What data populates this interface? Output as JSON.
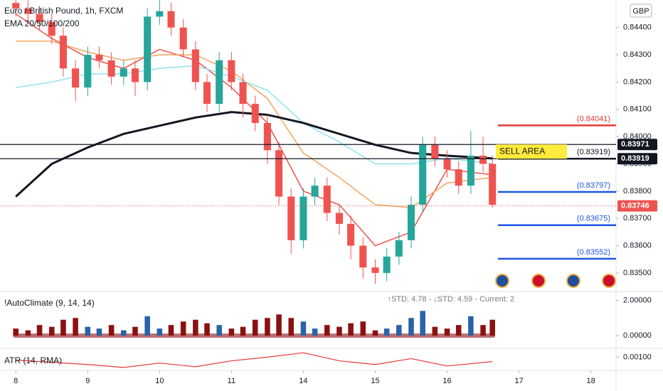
{
  "chart_data": [
    {
      "type": "candlestick",
      "title": "Euro / British Pound, 1h, FXCM",
      "subtitle": "EMA 20/50/100/200",
      "currency": "GBP",
      "up_color": "#26a69a",
      "down_color": "#ef5350",
      "xlim": [
        -0.22,
        8.35
      ],
      "xticks": [
        {
          "value": 0,
          "label": "8"
        },
        {
          "value": 1,
          "label": "9"
        },
        {
          "value": 2,
          "label": "10"
        },
        {
          "value": 3,
          "label": "11"
        },
        {
          "value": 4,
          "label": "14"
        },
        {
          "value": 5,
          "label": "15"
        },
        {
          "value": 6,
          "label": "16"
        },
        {
          "value": 7,
          "label": "17"
        },
        {
          "value": 8,
          "label": "18"
        }
      ],
      "ylim": [
        0.83432,
        0.84501
      ],
      "yticks": [
        {
          "value": 0.844,
          "label": "0.84400"
        },
        {
          "value": 0.843,
          "label": "0.84300"
        },
        {
          "value": 0.842,
          "label": "0.84200"
        },
        {
          "value": 0.841,
          "label": "0.84100"
        },
        {
          "value": 0.84,
          "label": "0.84000"
        },
        {
          "value": 0.839,
          "label": "0.83900"
        },
        {
          "value": 0.838,
          "label": "0.83800"
        },
        {
          "value": 0.837,
          "label": "0.83700"
        },
        {
          "value": 0.836,
          "label": "0.83600"
        },
        {
          "value": 0.835,
          "label": "0.83500"
        }
      ],
      "candles": [
        {
          "x": 0,
          "open": 0.8449,
          "high": 0.8452,
          "low": 0.8444,
          "close": 0.8447
        },
        {
          "x": 0.17,
          "open": 0.8447,
          "high": 0.845,
          "low": 0.8442,
          "close": 0.8445
        },
        {
          "x": 0.33,
          "open": 0.8445,
          "high": 0.8448,
          "low": 0.8439,
          "close": 0.8442
        },
        {
          "x": 0.5,
          "open": 0.8442,
          "high": 0.8445,
          "low": 0.8434,
          "close": 0.8437
        },
        {
          "x": 0.66,
          "open": 0.8437,
          "high": 0.844,
          "low": 0.8422,
          "close": 0.8425
        },
        {
          "x": 0.83,
          "open": 0.8425,
          "high": 0.8428,
          "low": 0.8413,
          "close": 0.8418
        },
        {
          "x": 1,
          "open": 0.8418,
          "high": 0.8433,
          "low": 0.8415,
          "close": 0.843
        },
        {
          "x": 1.16,
          "open": 0.843,
          "high": 0.8433,
          "low": 0.8425,
          "close": 0.8428
        },
        {
          "x": 1.33,
          "open": 0.8428,
          "high": 0.8431,
          "low": 0.8419,
          "close": 0.8422
        },
        {
          "x": 1.5,
          "open": 0.8422,
          "high": 0.8428,
          "low": 0.8419,
          "close": 0.8425
        },
        {
          "x": 1.66,
          "open": 0.8425,
          "high": 0.8428,
          "low": 0.8415,
          "close": 0.842
        },
        {
          "x": 1.83,
          "open": 0.842,
          "high": 0.8447,
          "low": 0.8417,
          "close": 0.8444
        },
        {
          "x": 2,
          "open": 0.8444,
          "high": 0.845,
          "low": 0.8441,
          "close": 0.8446
        },
        {
          "x": 2.16,
          "open": 0.8446,
          "high": 0.8449,
          "low": 0.8437,
          "close": 0.844
        },
        {
          "x": 2.33,
          "open": 0.844,
          "high": 0.8443,
          "low": 0.8429,
          "close": 0.8432
        },
        {
          "x": 2.5,
          "open": 0.8432,
          "high": 0.8435,
          "low": 0.8417,
          "close": 0.842
        },
        {
          "x": 2.66,
          "open": 0.842,
          "high": 0.8423,
          "low": 0.8409,
          "close": 0.8412
        },
        {
          "x": 2.83,
          "open": 0.8412,
          "high": 0.8431,
          "low": 0.8409,
          "close": 0.8428
        },
        {
          "x": 3,
          "open": 0.8428,
          "high": 0.8431,
          "low": 0.8417,
          "close": 0.842
        },
        {
          "x": 3.16,
          "open": 0.842,
          "high": 0.8423,
          "low": 0.8407,
          "close": 0.8412
        },
        {
          "x": 3.33,
          "open": 0.8412,
          "high": 0.8415,
          "low": 0.8402,
          "close": 0.8405
        },
        {
          "x": 3.5,
          "open": 0.8405,
          "high": 0.8408,
          "low": 0.839,
          "close": 0.8395
        },
        {
          "x": 3.66,
          "open": 0.8395,
          "high": 0.8398,
          "low": 0.8375,
          "close": 0.8378
        },
        {
          "x": 3.83,
          "open": 0.8378,
          "high": 0.8381,
          "low": 0.8357,
          "close": 0.8362
        },
        {
          "x": 4,
          "open": 0.8362,
          "high": 0.8381,
          "low": 0.8359,
          "close": 0.8378
        },
        {
          "x": 4.16,
          "open": 0.8378,
          "high": 0.8385,
          "low": 0.8375,
          "close": 0.8382
        },
        {
          "x": 4.33,
          "open": 0.8382,
          "high": 0.8385,
          "low": 0.8369,
          "close": 0.8372
        },
        {
          "x": 4.5,
          "open": 0.8372,
          "high": 0.8375,
          "low": 0.8364,
          "close": 0.8368
        },
        {
          "x": 4.66,
          "open": 0.8368,
          "high": 0.8371,
          "low": 0.8355,
          "close": 0.836
        },
        {
          "x": 4.83,
          "open": 0.836,
          "high": 0.8363,
          "low": 0.8348,
          "close": 0.8352
        },
        {
          "x": 5,
          "open": 0.8352,
          "high": 0.8355,
          "low": 0.8346,
          "close": 0.835
        },
        {
          "x": 5.16,
          "open": 0.835,
          "high": 0.8359,
          "low": 0.8347,
          "close": 0.8356
        },
        {
          "x": 5.33,
          "open": 0.8356,
          "high": 0.8365,
          "low": 0.8353,
          "close": 0.8362
        },
        {
          "x": 5.5,
          "open": 0.8362,
          "high": 0.8378,
          "low": 0.8359,
          "close": 0.8375
        },
        {
          "x": 5.66,
          "open": 0.8375,
          "high": 0.84,
          "low": 0.8372,
          "close": 0.8397
        },
        {
          "x": 5.83,
          "open": 0.8397,
          "high": 0.84,
          "low": 0.8389,
          "close": 0.8392
        },
        {
          "x": 6,
          "open": 0.8392,
          "high": 0.8395,
          "low": 0.8385,
          "close": 0.8388
        },
        {
          "x": 6.16,
          "open": 0.8388,
          "high": 0.8391,
          "low": 0.8379,
          "close": 0.8382
        },
        {
          "x": 6.33,
          "open": 0.8382,
          "high": 0.8402,
          "low": 0.8379,
          "close": 0.8393
        },
        {
          "x": 6.5,
          "open": 0.8393,
          "high": 0.84,
          "low": 0.8387,
          "close": 0.839
        },
        {
          "x": 6.63,
          "open": 0.839,
          "high": 0.8393,
          "low": 0.8374,
          "close": 0.8375
        }
      ],
      "line_x": [
        0,
        0.5,
        1,
        1.5,
        2,
        2.5,
        3,
        3.5,
        4,
        4.5,
        5,
        5.5,
        6,
        6.63
      ],
      "lines": [
        {
          "color": "#ef5350",
          "width": 1.5,
          "values": [
            0.8445,
            0.8436,
            0.8429,
            0.8425,
            0.8432,
            0.8428,
            0.8418,
            0.8405,
            0.838,
            0.8375,
            0.836,
            0.8365,
            0.8388,
            0.8386
          ]
        },
        {
          "color": "#f7a35c",
          "width": 1.5,
          "values": [
            0.8435,
            0.8435,
            0.8431,
            0.8428,
            0.843,
            0.843,
            0.8424,
            0.8414,
            0.8394,
            0.8385,
            0.8375,
            0.8374,
            0.8383,
            0.8385
          ]
        },
        {
          "color": "#8fe3ee",
          "width": 1.5,
          "values": [
            0.8418,
            0.842,
            0.8423,
            0.8423,
            0.8425,
            0.8426,
            0.8422,
            0.8417,
            0.8405,
            0.8398,
            0.839,
            0.839,
            0.8392,
            0.839
          ]
        },
        {
          "color": "#131722",
          "width": 3,
          "values": [
            0.8378,
            0.839,
            0.8396,
            0.8401,
            0.8404,
            0.8407,
            0.8409,
            0.8408,
            0.8405,
            0.8401,
            0.8397,
            0.8394,
            0.8393,
            0.8392
          ]
        }
      ],
      "levels": [
        {
          "value": 0.84041,
          "label": "(0.84041)",
          "color": "#e53935"
        },
        {
          "value": 0.83919,
          "label": "(0.83919)",
          "color": "#131722"
        },
        {
          "value": 0.83797,
          "label": "(0.83797)",
          "color": "#1e53e5"
        },
        {
          "value": 0.83675,
          "label": "(0.83675)",
          "color": "#1e53e5"
        },
        {
          "value": 0.83552,
          "label": "(0.83552)",
          "color": "#1e53e5"
        }
      ],
      "annotation": "SELL AREA",
      "price_tags": [
        {
          "value": 0.83971,
          "label": "0.83971",
          "color": "#131722",
          "line": "solid"
        },
        {
          "value": 0.83919,
          "label": "0.83919",
          "color": "#131722",
          "line": "solid"
        },
        {
          "value": 0.83746,
          "label": "0.83746",
          "color": "#ef5350",
          "line": "dashed"
        }
      ]
    },
    {
      "type": "bar",
      "title": "!AutoClimate (9, 14, 14)",
      "stats": "↑STD: 4.78 - ↓STD: 4.59 - Current: 2",
      "ylim": [
        -0.72,
        2.5
      ],
      "yticks": [
        {
          "value": 2,
          "label": "2.00000"
        },
        {
          "value": 0,
          "label": "0.00000"
        }
      ],
      "values": [
        0.4,
        0.3,
        0.6,
        0.5,
        0.9,
        1.0,
        0.5,
        0.4,
        0.6,
        0.3,
        0.5,
        1.1,
        0.4,
        0.6,
        0.8,
        0.9,
        0.7,
        0.6,
        0.4,
        0.5,
        0.9,
        1.0,
        1.2,
        1.0,
        0.8,
        0.4,
        0.6,
        0.5,
        0.7,
        0.8,
        0.3,
        0.4,
        0.6,
        1.0,
        1.4,
        0.5,
        0.4,
        0.6,
        1.1,
        0.6,
        0.9
      ],
      "bar_colors": [
        "#8b1111",
        "#8b1111",
        "#8b1111",
        "#8b1111",
        "#8b1111",
        "#8b1111",
        "#2962a6",
        "#2962a6",
        "#8b1111",
        "#2962a6",
        "#8b1111",
        "#2962a6",
        "#2962a6",
        "#8b1111",
        "#8b1111",
        "#8b1111",
        "#8b1111",
        "#2962a6",
        "#8b1111",
        "#8b1111",
        "#8b1111",
        "#8b1111",
        "#8b1111",
        "#8b1111",
        "#2962a6",
        "#2962a6",
        "#8b1111",
        "#8b1111",
        "#8b1111",
        "#8b1111",
        "#8b1111",
        "#2962a6",
        "#2962a6",
        "#2962a6",
        "#2962a6",
        "#8b1111",
        "#8b1111",
        "#8b1111",
        "#2962a6",
        "#8b1111",
        "#8b1111"
      ]
    },
    {
      "type": "line",
      "title": "ATR (14, RMA)",
      "color": "#e53935",
      "ylim": [
        0.00082,
        0.00112
      ],
      "yticks": [
        {
          "value": 0.001,
          "label": "0.00100"
        }
      ],
      "values": [
        0.00096,
        0.00093,
        0.0009,
        0.00086,
        0.00092,
        0.00087,
        0.00095,
        0.001,
        0.00106,
        0.00095,
        0.0009,
        0.00098,
        0.00088,
        0.00094
      ]
    }
  ]
}
